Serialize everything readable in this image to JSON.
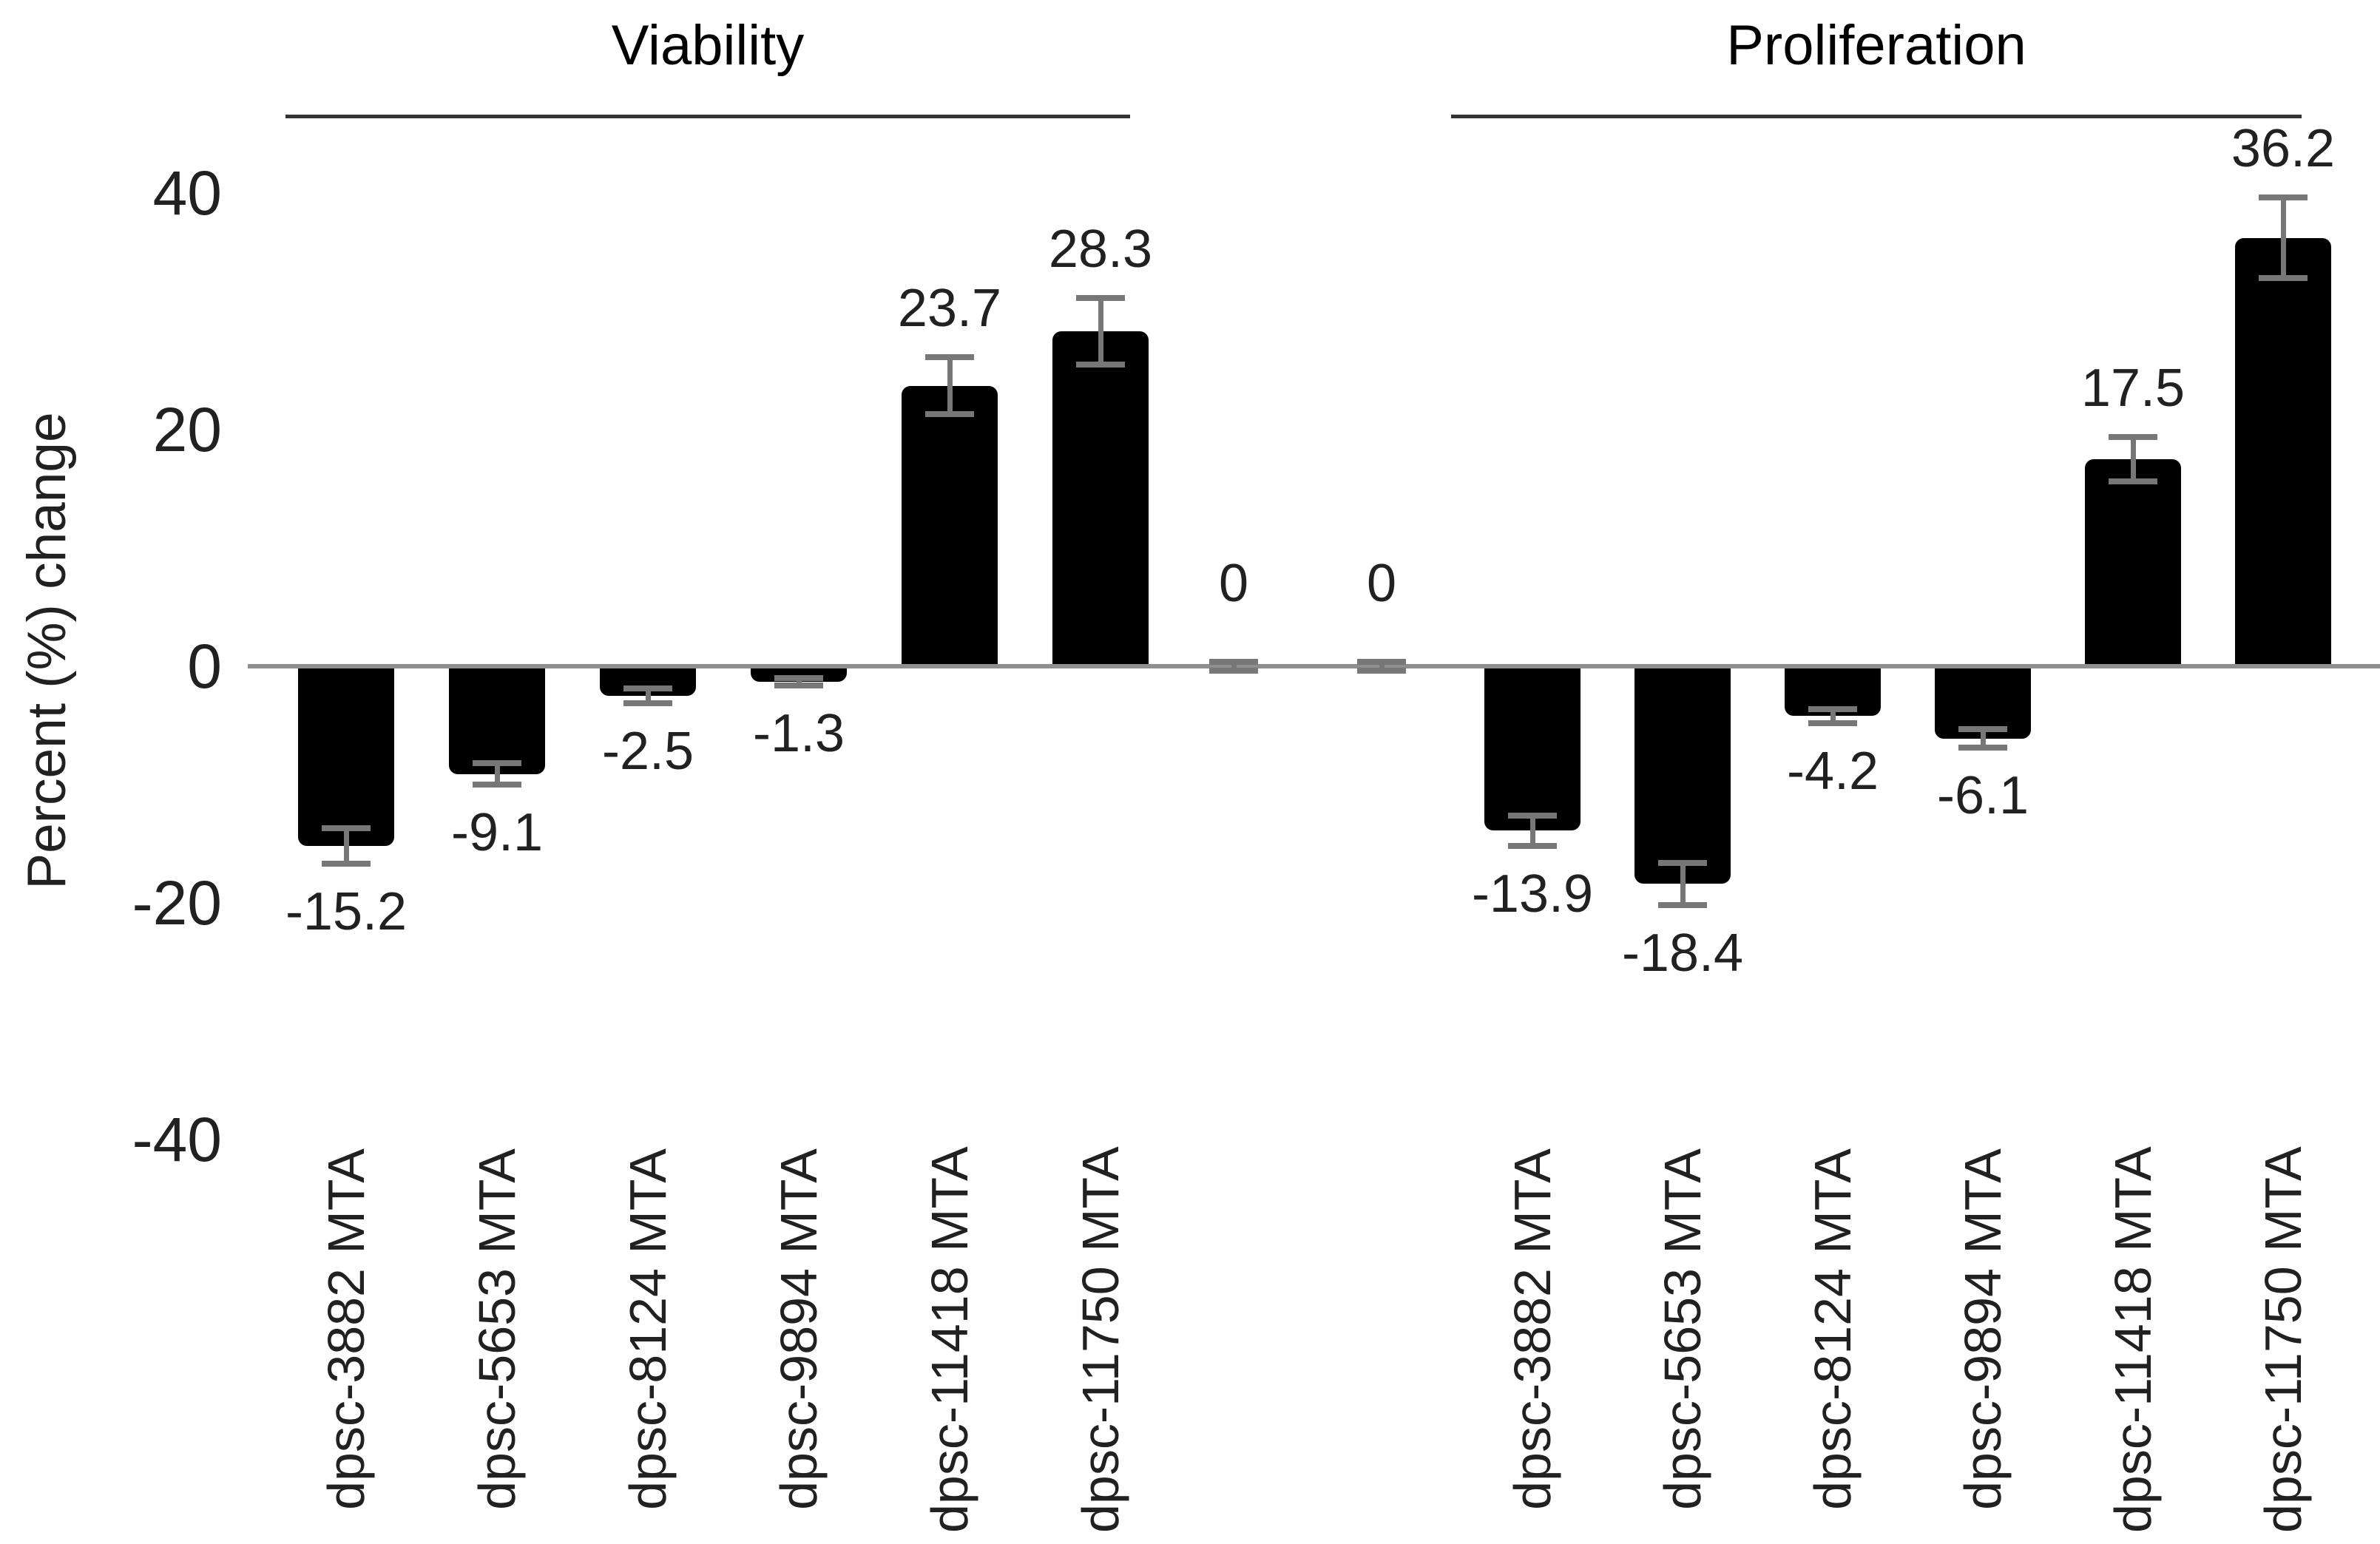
{
  "chart_data": {
    "type": "bar",
    "title": "",
    "ylabel": "Percent (%) change",
    "ylim": [
      -40,
      40
    ],
    "yticks": [
      40,
      20,
      0,
      -20,
      -40
    ],
    "ytick_labels": [
      "40",
      "20",
      "0",
      "-20",
      "-40"
    ],
    "grid": false,
    "legend_position": "none",
    "groups": [
      {
        "label": "Viability",
        "categories": [
          "dpsc-3882 MTA",
          "dpsc-5653 MTA",
          "dpsc-8124 MTA",
          "dpsc-9894 MTA",
          "dpsc-11418 MTA",
          "dpsc-11750 MTA"
        ],
        "values": [
          -15.2,
          -9.1,
          -2.5,
          -1.3,
          23.7,
          28.3
        ],
        "value_labels": [
          "-15.2",
          "-9.1",
          "-2.5",
          "-1.3",
          "23.7",
          "28.3"
        ],
        "errors": [
          1.5,
          0.9,
          0.6,
          0.3,
          2.4,
          2.8
        ]
      },
      {
        "label": "Proliferation",
        "categories": [
          "dpsc-3882 MTA",
          "dpsc-5653 MTA",
          "dpsc-8124 MTA",
          "dpsc-9894 MTA",
          "dpsc-11418 MTA",
          "dpsc-11750 MTA"
        ],
        "values": [
          -13.9,
          -18.4,
          -4.2,
          -6.1,
          17.5,
          36.2
        ],
        "value_labels": [
          "-13.9",
          "-18.4",
          "-4.2",
          "-6.1",
          "17.5",
          "36.2"
        ],
        "errors": [
          1.3,
          1.8,
          0.6,
          0.8,
          1.9,
          3.4
        ]
      }
    ],
    "control_bars": {
      "categories": [
        "",
        ""
      ],
      "values": [
        0,
        0
      ],
      "value_labels": [
        "0",
        "0"
      ],
      "errors": [
        0.4,
        0.4
      ]
    }
  },
  "style": {
    "bar_color": "#000000",
    "axis_line_color": "#8f8f8f",
    "error_bar_color": "#777777",
    "text_color": "#212121",
    "title_color": "#000000",
    "underline_color": "#333333"
  }
}
